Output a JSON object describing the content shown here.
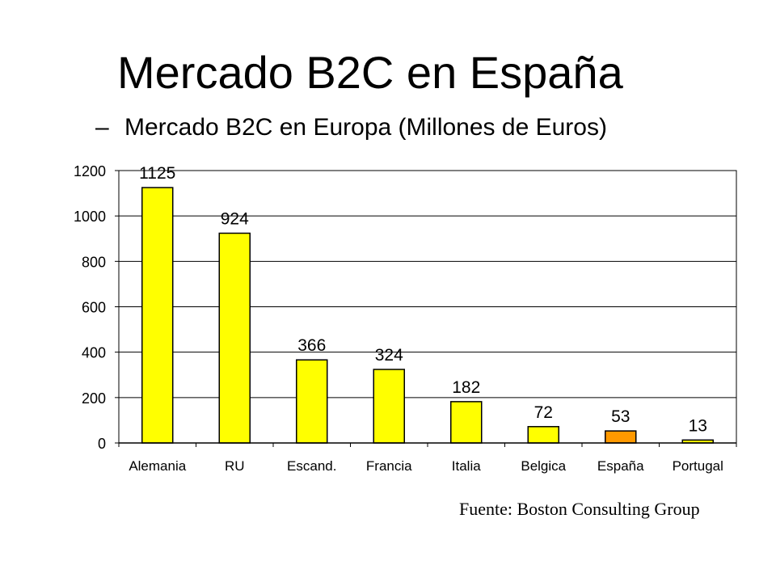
{
  "slide": {
    "title": "Mercado B2C en España",
    "subtitle_dash": "–",
    "subtitle": "Mercado B2C en Europa (Millones de Euros)",
    "source": "Fuente: Boston Consulting Group"
  },
  "colors": {
    "bar": "#FFFF00",
    "highlight": "#FF9900",
    "stroke": "#000000",
    "grid": "#000000"
  },
  "chart_data": {
    "type": "bar",
    "title": "Mercado B2C en Europa (Millones de Euros)",
    "categories": [
      "Alemania",
      "RU",
      "Escand.",
      "Francia",
      "Italia",
      "Belgica",
      "España",
      "Portugal"
    ],
    "values": [
      1125,
      924,
      366,
      324,
      182,
      72,
      53,
      13
    ],
    "labels": [
      "1125",
      "924",
      "366",
      "324",
      "182",
      "72",
      "53",
      "13"
    ],
    "highlight_index": 6,
    "ylim": [
      0,
      1200
    ],
    "yticks": [
      0,
      200,
      400,
      600,
      800,
      1000,
      1200
    ],
    "grid": true,
    "xlabel": "",
    "ylabel": ""
  }
}
